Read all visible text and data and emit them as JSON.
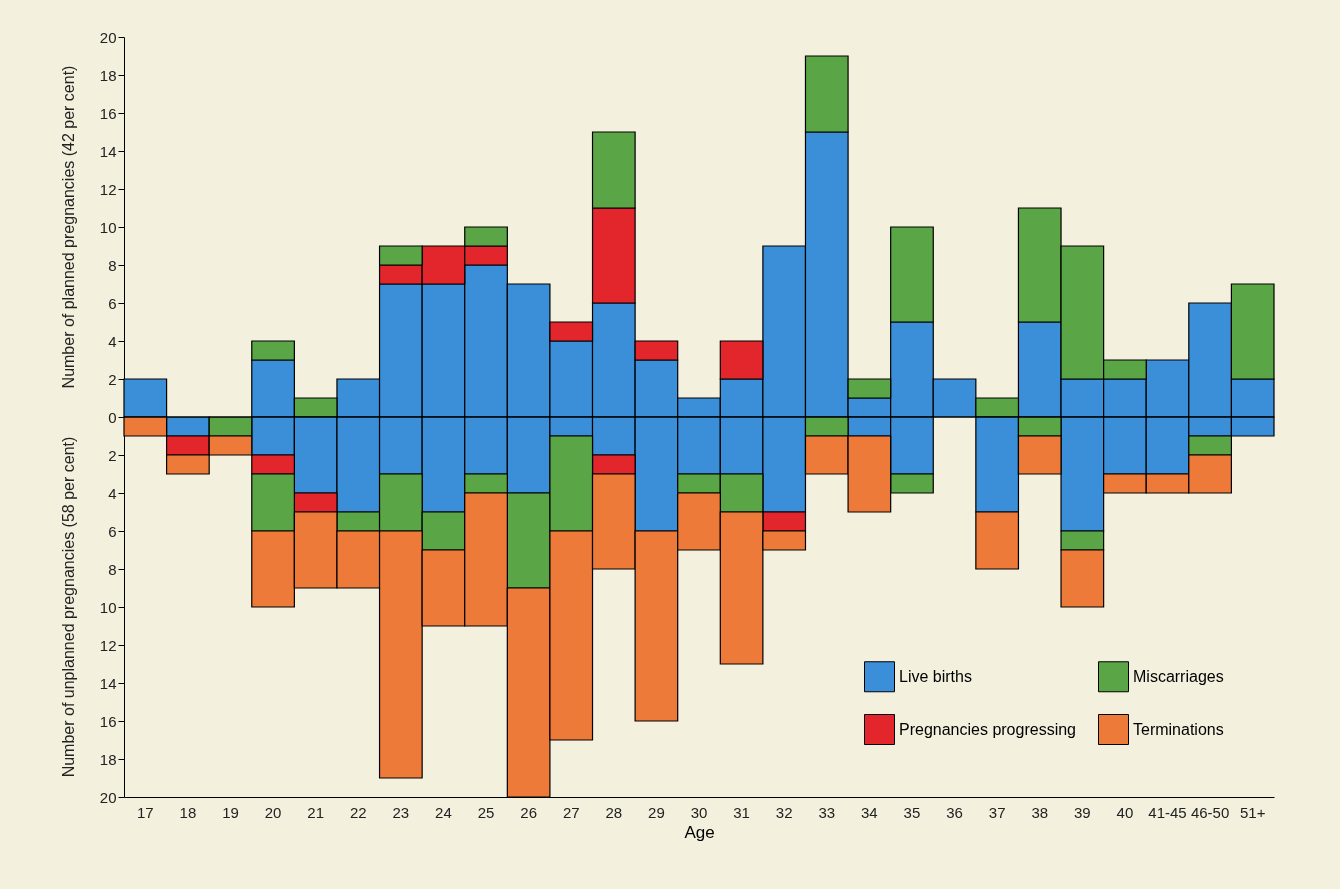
{
  "chart_data": {
    "type": "bar",
    "stacked": true,
    "xlabel": "Age",
    "ylabel": "Number of planned pregnancies (42 per cent)",
    "annotations": [
      "Number of unplanned pregnancies (58 per cent)"
    ],
    "categories": [
      "17",
      "18",
      "19",
      "20",
      "21",
      "22",
      "23",
      "24",
      "25",
      "26",
      "27",
      "28",
      "29",
      "30",
      "31",
      "32",
      "33",
      "34",
      "35",
      "36",
      "37",
      "38",
      "39",
      "40",
      "41-45",
      "46-50",
      "51+"
    ],
    "series": [
      {
        "name": "Live births",
        "color": "#3b8fd8",
        "values": [
          2,
          0,
          0,
          3,
          0,
          2,
          7,
          7,
          8,
          7,
          4,
          6,
          3,
          1,
          2,
          9,
          15,
          1,
          5,
          2,
          0,
          5,
          2,
          2,
          3,
          6,
          2
        ]
      },
      {
        "name": "Pregnancies progressing",
        "color": "#e2262c",
        "values": [
          0,
          0,
          0,
          0,
          0,
          0,
          1,
          2,
          1,
          0,
          1,
          5,
          1,
          0,
          2,
          0,
          0,
          0,
          0,
          0,
          0,
          0,
          0,
          0,
          0,
          0,
          0
        ]
      },
      {
        "name": "Miscarriages",
        "color": "#5aa646",
        "values": [
          0,
          0,
          0,
          1,
          1,
          0,
          1,
          0,
          1,
          0,
          0,
          4,
          0,
          0,
          0,
          0,
          4,
          1,
          5,
          0,
          1,
          6,
          7,
          1,
          0,
          0,
          5
        ]
      },
      {
        "color": "#3b8fd8",
        "values": [
          0,
          -1,
          0,
          -2,
          -4,
          -5,
          -3,
          -5,
          -3,
          -4,
          -1,
          -2,
          -6,
          -3,
          -3,
          -5,
          0,
          -1,
          -3,
          0,
          -5,
          0,
          -6,
          -3,
          -3,
          -1,
          -1
        ]
      },
      {
        "color": "#e2262c",
        "values": [
          0,
          -1,
          0,
          -1,
          -1,
          0,
          0,
          0,
          0,
          0,
          0,
          -1,
          0,
          0,
          0,
          -1,
          0,
          0,
          0,
          0,
          0,
          0,
          0,
          0,
          0,
          0,
          0
        ]
      },
      {
        "color": "#5aa646",
        "values": [
          0,
          0,
          -1,
          -3,
          0,
          -1,
          -3,
          -2,
          -1,
          -5,
          -5,
          0,
          0,
          -1,
          -2,
          0,
          -1,
          0,
          -1,
          0,
          0,
          -1,
          -1,
          0,
          0,
          -1,
          0
        ]
      },
      {
        "name": "Terminations",
        "color": "#ee7a3a",
        "values": [
          -1,
          -1,
          -1,
          -4,
          -4,
          -3,
          -13,
          -4,
          -7,
          -11,
          -11,
          -5,
          -10,
          -3,
          -8,
          -1,
          -2,
          -4,
          0,
          0,
          -3,
          -2,
          -3,
          -1,
          -1,
          -2,
          0
        ]
      }
    ],
    "ylim": [
      -20,
      20
    ],
    "yticks": [
      {
        "value": -20,
        "label": "20"
      },
      {
        "value": -18,
        "label": "18"
      },
      {
        "value": -16,
        "label": "16"
      },
      {
        "value": -14,
        "label": "14"
      },
      {
        "value": -12,
        "label": "12"
      },
      {
        "value": -10,
        "label": "10"
      },
      {
        "value": -8,
        "label": "8"
      },
      {
        "value": -6,
        "label": "6"
      },
      {
        "value": -4,
        "label": "4"
      },
      {
        "value": -2,
        "label": "2"
      },
      0,
      2,
      4,
      6,
      8,
      10,
      12,
      14,
      16,
      18,
      20
    ],
    "ref_lines": [
      {
        "axis": "y",
        "value": 0
      }
    ],
    "grid": false,
    "legend": "bottom right"
  }
}
